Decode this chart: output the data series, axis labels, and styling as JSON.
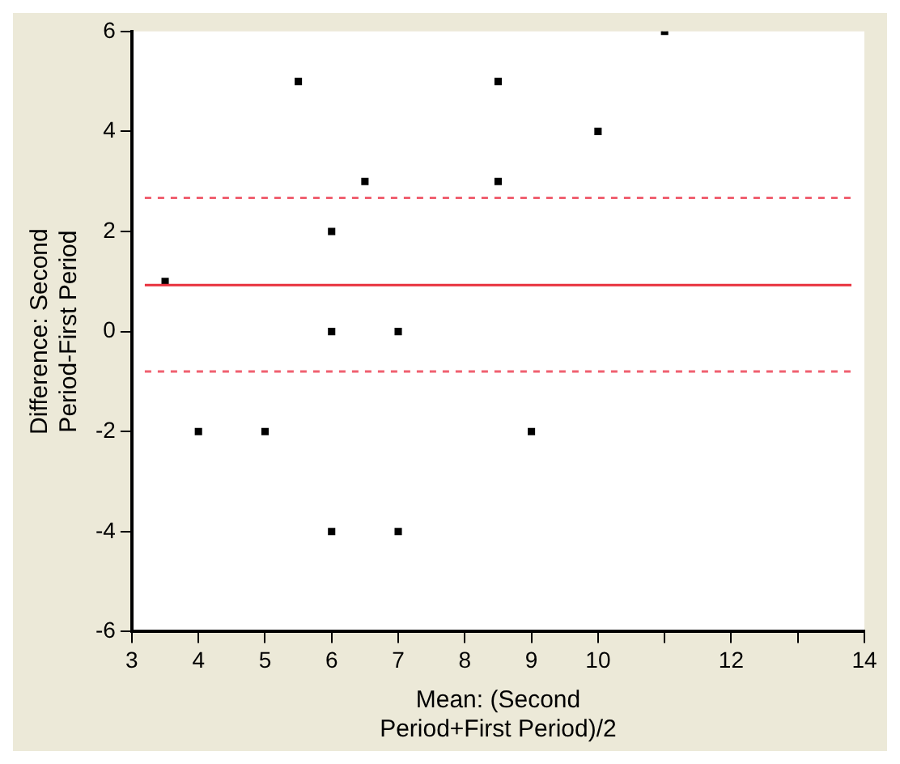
{
  "chart_data": {
    "type": "scatter",
    "xlabel": "Mean: (Second Period+First Period)/2",
    "ylabel": "Difference: Second Period-First Period",
    "x": [
      3.5,
      4,
      5,
      5.5,
      6,
      6,
      6,
      6.5,
      7,
      7,
      8.5,
      8.5,
      9,
      10,
      11
    ],
    "series": [
      {
        "color": "#000000",
        "values": [
          1,
          -2,
          -2,
          5,
          2,
          0,
          -4,
          3,
          0,
          -4,
          5,
          3,
          -2,
          4,
          6
        ]
      }
    ],
    "xlim": [
      3,
      14
    ],
    "xticks": [
      3,
      4,
      5,
      6,
      7,
      8,
      9,
      10,
      {
        "value": 11,
        "label": null
      },
      12,
      {
        "value": 13,
        "label": null
      },
      14
    ],
    "ylim": [
      -6,
      6
    ],
    "yticks": [
      -6,
      -4,
      -2,
      0,
      2,
      4,
      6
    ],
    "ref_lines": [
      {
        "axis": "y",
        "value": 0.93,
        "color": "#e8303c",
        "line_style": "solid"
      },
      {
        "axis": "y",
        "value": 2.67,
        "color": "#f06070",
        "line_style": "dashed"
      },
      {
        "axis": "y",
        "value": -0.8,
        "color": "#f06070",
        "line_style": "dashed"
      }
    ],
    "marker": "square",
    "grid": false,
    "legend": false
  }
}
